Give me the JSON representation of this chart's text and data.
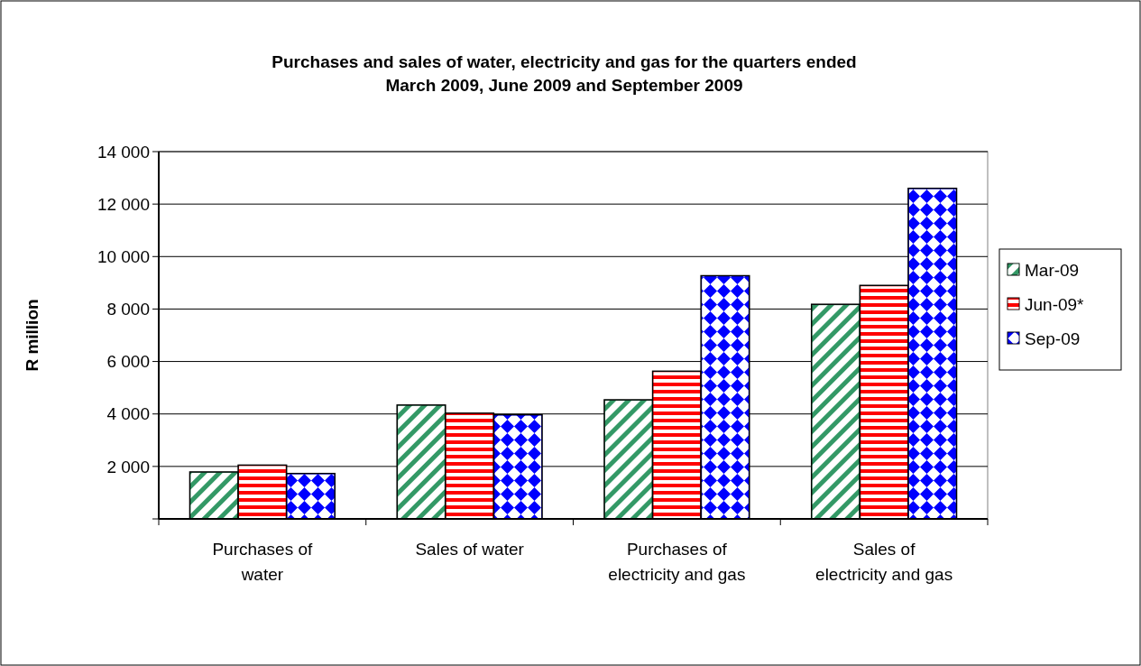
{
  "chart_data": {
    "type": "bar",
    "title": "Purchases and sales of water, electricity and gas for the quarters ended\nMarch 2009, June 2009 and September 2009",
    "ylabel": "R million",
    "categories": [
      "Purchases of\nwater",
      "Sales of water",
      "Purchases of\nelectricity and gas",
      "Sales of\nelectricity and gas"
    ],
    "series": [
      {
        "name": "Mar-09",
        "color": "#339966",
        "values": [
          1790,
          4340,
          4540,
          8180
        ]
      },
      {
        "name": "Jun-09*",
        "color": "#ff0000",
        "values": [
          2050,
          4030,
          5630,
          8900
        ]
      },
      {
        "name": "Sep-09",
        "color": "#0000ff",
        "values": [
          1730,
          3970,
          9270,
          12600
        ]
      }
    ],
    "ylim": [
      0,
      14000
    ],
    "yticks": [
      {
        "value": 0,
        "label": null
      },
      {
        "value": 2000,
        "label": "2 000"
      },
      {
        "value": 4000,
        "label": "4 000"
      },
      {
        "value": 6000,
        "label": "6 000"
      },
      {
        "value": 8000,
        "label": "8 000"
      },
      {
        "value": 10000,
        "label": "10 000"
      },
      {
        "value": 12000,
        "label": "12 000"
      },
      {
        "value": 14000,
        "label": "14 000"
      }
    ],
    "grid": "y",
    "legend": "right"
  }
}
